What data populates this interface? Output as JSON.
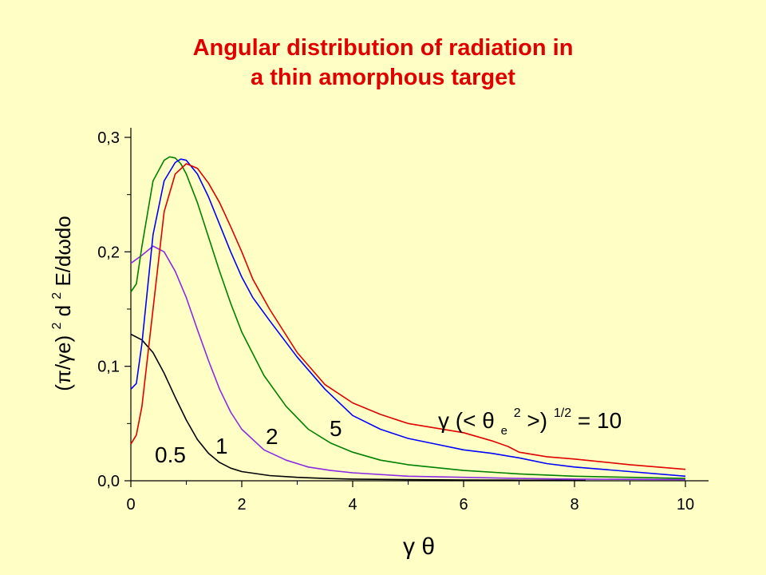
{
  "title": {
    "line1": "Angular distribution of radiation in",
    "line2": "a thin amorphous target"
  },
  "colors": {
    "background": "#ffffc5",
    "title": "#e00000",
    "curve_0_5": "#000000",
    "curve_1": "#8a2be2",
    "curve_2": "#008000",
    "curve_5": "#0000ff",
    "curve_10": "#e00000"
  },
  "chart_data": {
    "type": "line",
    "title": "Angular distribution of radiation in a thin amorphous target",
    "xlabel": "γ θ",
    "ylabel_parts": {
      "prefix": "(π/γe)",
      "power": "2",
      "d": " d",
      "d_power": "2",
      "rest": "E/dωdo"
    },
    "xlim": [
      0,
      10
    ],
    "ylim": [
      0,
      0.3
    ],
    "x_ticks": [
      0,
      2,
      4,
      6,
      8,
      10
    ],
    "x_tick_labels": [
      "0",
      "2",
      "4",
      "6",
      "8",
      "10"
    ],
    "y_ticks": [
      0.0,
      0.1,
      0.2,
      0.3
    ],
    "y_tick_labels": [
      "0,0",
      "0,1",
      "0,2",
      "0,3"
    ],
    "grid": false,
    "legend": "none",
    "annotation": {
      "gamma": "γ",
      "open": " (<",
      "theta": "θ",
      "sub": "e",
      "sup2": "2",
      "close": ">)",
      "sup_half": "1/2",
      "eq": " = 10"
    },
    "series": [
      {
        "name": "0.5",
        "color": "#000000",
        "x": [
          0,
          0.2,
          0.4,
          0.6,
          0.8,
          1.0,
          1.2,
          1.4,
          1.6,
          1.8,
          2.0,
          2.5,
          3.0,
          3.5,
          4.0,
          5.0,
          6.0,
          7.0,
          8.0,
          8.2
        ],
        "y": [
          0.128,
          0.123,
          0.112,
          0.094,
          0.073,
          0.053,
          0.036,
          0.024,
          0.016,
          0.011,
          0.008,
          0.0045,
          0.003,
          0.002,
          0.0015,
          0.001,
          0.0007,
          0.0005,
          0.0004,
          0.0004
        ]
      },
      {
        "name": "1",
        "color": "#8a2be2",
        "x": [
          0,
          0.2,
          0.4,
          0.6,
          0.8,
          1.0,
          1.2,
          1.4,
          1.6,
          1.8,
          2.0,
          2.4,
          2.8,
          3.2,
          3.6,
          4.0,
          5.0,
          6.0,
          7.0,
          8.0,
          10.0
        ],
        "y": [
          0.19,
          0.197,
          0.205,
          0.2,
          0.183,
          0.16,
          0.132,
          0.105,
          0.08,
          0.06,
          0.045,
          0.027,
          0.018,
          0.012,
          0.009,
          0.007,
          0.004,
          0.003,
          0.002,
          0.0015,
          0.001
        ]
      },
      {
        "name": "2",
        "color": "#008000",
        "x": [
          0,
          0.1,
          0.2,
          0.4,
          0.6,
          0.7,
          0.8,
          0.9,
          1.0,
          1.2,
          1.4,
          1.6,
          1.8,
          2.0,
          2.4,
          2.8,
          3.2,
          3.6,
          4.0,
          4.5,
          5.0,
          6.0,
          7.0,
          8.0,
          9.0,
          10.0
        ],
        "y": [
          0.165,
          0.172,
          0.205,
          0.262,
          0.28,
          0.283,
          0.282,
          0.277,
          0.268,
          0.243,
          0.213,
          0.183,
          0.155,
          0.13,
          0.092,
          0.065,
          0.045,
          0.033,
          0.025,
          0.018,
          0.014,
          0.009,
          0.006,
          0.004,
          0.003,
          0.002
        ]
      },
      {
        "name": "5",
        "color": "#0000ff",
        "x": [
          0,
          0.1,
          0.2,
          0.4,
          0.6,
          0.8,
          0.9,
          1.0,
          1.2,
          1.4,
          1.6,
          1.8,
          2.0,
          2.2,
          2.5,
          3.0,
          3.5,
          4.0,
          4.5,
          5.0,
          5.5,
          6.0,
          6.5,
          7.0,
          7.5,
          8.0,
          9.0,
          10.0
        ],
        "y": [
          0.08,
          0.085,
          0.12,
          0.215,
          0.262,
          0.278,
          0.281,
          0.28,
          0.268,
          0.248,
          0.224,
          0.2,
          0.178,
          0.16,
          0.14,
          0.108,
          0.08,
          0.057,
          0.045,
          0.037,
          0.032,
          0.027,
          0.024,
          0.02,
          0.015,
          0.012,
          0.008,
          0.004
        ]
      },
      {
        "name": "10",
        "color": "#e00000",
        "x": [
          0,
          0.1,
          0.2,
          0.4,
          0.6,
          0.8,
          1.0,
          1.2,
          1.4,
          1.6,
          1.8,
          2.0,
          2.2,
          2.5,
          3.0,
          3.5,
          4.0,
          4.5,
          5.0,
          5.5,
          6.0,
          6.5,
          6.8,
          7.0,
          7.5,
          8.0,
          9.0,
          10.0
        ],
        "y": [
          0.032,
          0.04,
          0.065,
          0.15,
          0.235,
          0.268,
          0.277,
          0.273,
          0.26,
          0.243,
          0.222,
          0.2,
          0.176,
          0.15,
          0.112,
          0.084,
          0.068,
          0.058,
          0.05,
          0.046,
          0.042,
          0.035,
          0.03,
          0.025,
          0.021,
          0.019,
          0.014,
          0.01
        ]
      }
    ]
  }
}
